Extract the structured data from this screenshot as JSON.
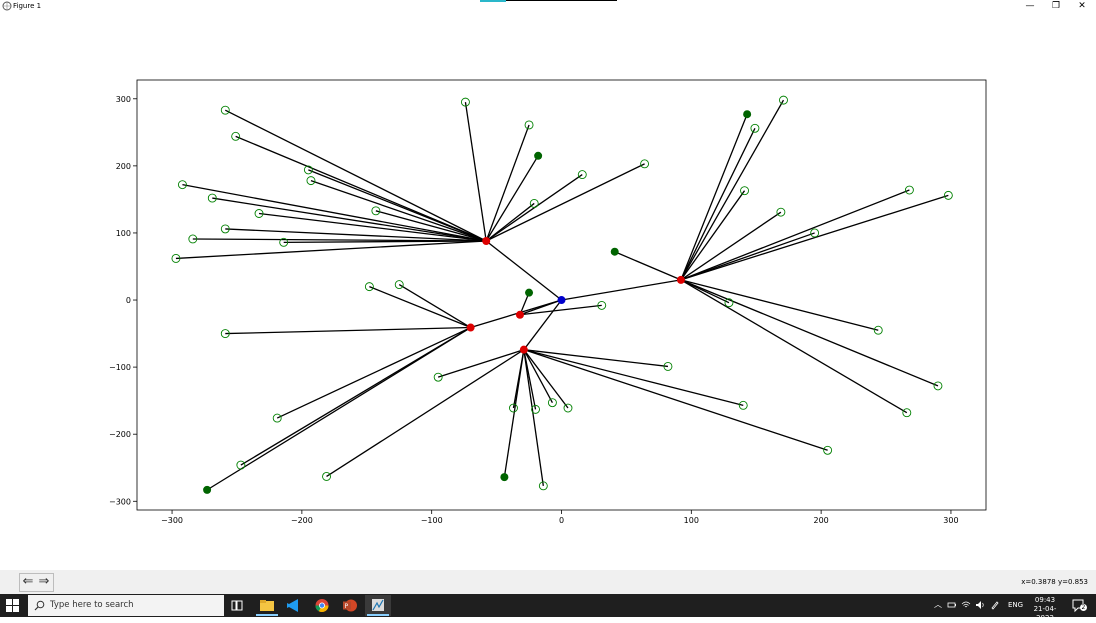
{
  "window": {
    "title": "Figure 1",
    "minimize_glyph": "—",
    "maximize_glyph": "❐",
    "close_glyph": "✕"
  },
  "toolbar": {
    "back_glyph": "⇐",
    "forward_glyph": "⇒",
    "coordinate_readout": "x=0.3878 y=0.853"
  },
  "chart_data": {
    "type": "scatter",
    "title": "",
    "xlabel": "",
    "ylabel": "",
    "xlim": [
      -327,
      327
    ],
    "ylim": [
      -313,
      328
    ],
    "xticks": [
      -300,
      -200,
      -100,
      0,
      100,
      200,
      300
    ],
    "yticks": [
      -300,
      -200,
      -100,
      0,
      100,
      200,
      300
    ],
    "xtick_labels": [
      "−300",
      "−200",
      "−100",
      "0",
      "100",
      "200",
      "300"
    ],
    "ytick_labels": [
      "−300",
      "−200",
      "−100",
      "0",
      "100",
      "200",
      "300"
    ],
    "grid": false,
    "legend": "none",
    "colors": {
      "root": "#0000cc",
      "hub": "#dd0000",
      "leaf_filled": "#006400",
      "leaf_open": "#008000",
      "edge": "#000000"
    },
    "root": {
      "x": 0,
      "y": 0
    },
    "hubs": [
      {
        "x": -58,
        "y": 88
      },
      {
        "x": 92,
        "y": 30
      },
      {
        "x": -32,
        "y": -22
      },
      {
        "x": -70,
        "y": -41
      },
      {
        "x": -29,
        "y": -74
      }
    ],
    "hub_edges": [
      [
        0,
        0
      ],
      [
        0,
        1
      ],
      [
        0,
        2
      ],
      [
        0,
        3
      ],
      [
        0,
        4
      ]
    ],
    "leaves": [
      {
        "hub": 0,
        "x": -259,
        "y": 283,
        "filled": false
      },
      {
        "hub": 0,
        "x": -251,
        "y": 244,
        "filled": false
      },
      {
        "hub": 0,
        "x": -74,
        "y": 295,
        "filled": false
      },
      {
        "hub": 0,
        "x": -25,
        "y": 261,
        "filled": false
      },
      {
        "hub": 0,
        "x": -18,
        "y": 215,
        "filled": true
      },
      {
        "hub": 0,
        "x": 16,
        "y": 187,
        "filled": false
      },
      {
        "hub": 0,
        "x": 64,
        "y": 203,
        "filled": false
      },
      {
        "hub": 0,
        "x": -195,
        "y": 194,
        "filled": false
      },
      {
        "hub": 0,
        "x": -193,
        "y": 178,
        "filled": false
      },
      {
        "hub": 0,
        "x": -292,
        "y": 172,
        "filled": false
      },
      {
        "hub": 0,
        "x": -269,
        "y": 152,
        "filled": false
      },
      {
        "hub": 0,
        "x": -233,
        "y": 129,
        "filled": false
      },
      {
        "hub": 0,
        "x": -143,
        "y": 133,
        "filled": false
      },
      {
        "hub": 0,
        "x": -21,
        "y": 144,
        "filled": false
      },
      {
        "hub": 0,
        "x": -259,
        "y": 106,
        "filled": false
      },
      {
        "hub": 0,
        "x": -284,
        "y": 91,
        "filled": false
      },
      {
        "hub": 0,
        "x": -214,
        "y": 86,
        "filled": false
      },
      {
        "hub": 0,
        "x": -297,
        "y": 62,
        "filled": false
      },
      {
        "hub": 1,
        "x": 143,
        "y": 277,
        "filled": true
      },
      {
        "hub": 1,
        "x": 171,
        "y": 298,
        "filled": false
      },
      {
        "hub": 1,
        "x": 149,
        "y": 256,
        "filled": false
      },
      {
        "hub": 1,
        "x": 141,
        "y": 163,
        "filled": false
      },
      {
        "hub": 1,
        "x": 169,
        "y": 131,
        "filled": false
      },
      {
        "hub": 1,
        "x": 268,
        "y": 164,
        "filled": false
      },
      {
        "hub": 1,
        "x": 298,
        "y": 156,
        "filled": false
      },
      {
        "hub": 1,
        "x": 195,
        "y": 100,
        "filled": false
      },
      {
        "hub": 1,
        "x": 41,
        "y": 72,
        "filled": true
      },
      {
        "hub": 1,
        "x": 129,
        "y": -4,
        "filled": false
      },
      {
        "hub": 1,
        "x": 244,
        "y": -45,
        "filled": false
      },
      {
        "hub": 1,
        "x": 290,
        "y": -128,
        "filled": false
      },
      {
        "hub": 1,
        "x": 266,
        "y": -168,
        "filled": false
      },
      {
        "hub": 2,
        "x": -25,
        "y": 11,
        "filled": true
      },
      {
        "hub": 2,
        "x": 31,
        "y": -8,
        "filled": false
      },
      {
        "hub": 3,
        "x": -148,
        "y": 20,
        "filled": false
      },
      {
        "hub": 3,
        "x": -125,
        "y": 23,
        "filled": false
      },
      {
        "hub": 3,
        "x": -259,
        "y": -50,
        "filled": false
      },
      {
        "hub": 3,
        "x": -219,
        "y": -176,
        "filled": false
      },
      {
        "hub": 3,
        "x": -247,
        "y": -246,
        "filled": false
      },
      {
        "hub": 3,
        "x": -273,
        "y": -283,
        "filled": true
      },
      {
        "hub": 4,
        "x": -95,
        "y": -115,
        "filled": false
      },
      {
        "hub": 4,
        "x": 82,
        "y": -99,
        "filled": false
      },
      {
        "hub": 4,
        "x": -37,
        "y": -161,
        "filled": false
      },
      {
        "hub": 4,
        "x": -20,
        "y": -163,
        "filled": false
      },
      {
        "hub": 4,
        "x": -7,
        "y": -153,
        "filled": false
      },
      {
        "hub": 4,
        "x": 5,
        "y": -161,
        "filled": false
      },
      {
        "hub": 4,
        "x": 140,
        "y": -157,
        "filled": false
      },
      {
        "hub": 4,
        "x": 205,
        "y": -224,
        "filled": false
      },
      {
        "hub": 4,
        "x": -181,
        "y": -263,
        "filled": false
      },
      {
        "hub": 4,
        "x": -44,
        "y": -264,
        "filled": true
      },
      {
        "hub": 4,
        "x": -14,
        "y": -277,
        "filled": false
      }
    ]
  },
  "taskbar": {
    "search_placeholder": "Type here to search",
    "language": "ENG",
    "time": "09:43",
    "date": "21-04-2022",
    "notification_count": "2",
    "tray_chevron": "︿"
  }
}
